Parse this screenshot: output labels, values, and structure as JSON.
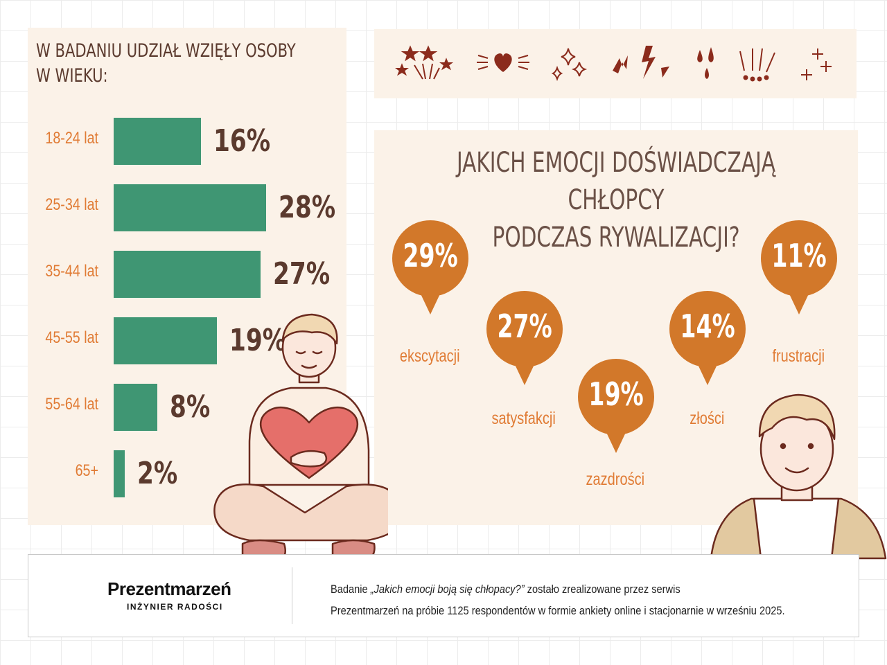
{
  "left_panel": {
    "title_line1": "W BADANIU UDZIAŁ WZIĘŁY OSOBY",
    "title_line2": "W WIEKU:"
  },
  "right_panel": {
    "title_line1": "JAKICH EMOCJI DOŚWIADCZAJĄ CHŁOPCY",
    "title_line2": "PODCZAS RYWALIZACJI?"
  },
  "colors": {
    "bar": "#3f9673",
    "bubble": "#d2782a",
    "label": "#e07b34",
    "title": "#5b3a2e",
    "panel": "#fbf2e8"
  },
  "icons": [
    "sparkle-stars-icon",
    "heart-icon",
    "twinkle-icon",
    "lightning-icon",
    "drops-icon",
    "exclamation-icon",
    "plus-sparkle-icon"
  ],
  "chart_data": [
    {
      "type": "bar",
      "orientation": "horizontal",
      "title": "W BADANIU UDZIAŁ WZIĘŁY OSOBY W WIEKU:",
      "categories": [
        "18-24 lat",
        "25-34  lat",
        "35-44 lat",
        "45-55 lat",
        "55-64 lat",
        "65+"
      ],
      "values": [
        16,
        28,
        27,
        19,
        8,
        2
      ],
      "value_labels": [
        "16%",
        "28%",
        "27%",
        "19%",
        "8%",
        "2%"
      ],
      "unit": "%",
      "xlim": [
        0,
        28
      ]
    },
    {
      "type": "bubble-labels",
      "title": "JAKICH EMOCJI DOŚWIADCZAJĄ CHŁOPCY PODCZAS RYWALIZACJI?",
      "categories": [
        "ekscytacji",
        "satysfakcji",
        "zazdrości",
        "złości",
        "frustracji"
      ],
      "values": [
        29,
        27,
        19,
        14,
        11
      ],
      "value_labels": [
        "29%",
        "27%",
        "19%",
        "14%",
        "11%"
      ],
      "unit": "%"
    }
  ],
  "footer": {
    "brand_name": "Prezentmarzeń",
    "brand_tagline": "INŻYNIER RADOŚCI",
    "line1_before": "Badanie ",
    "line1_italic": "„Jakich emocji boją się chłopacy?”",
    "line1_after": " zostało zrealizowane przez serwis",
    "line2": "Prezentmarzeń na próbie 1125 respondentów w formie ankiety online i stacjonarnie w wrześniu 2025."
  }
}
